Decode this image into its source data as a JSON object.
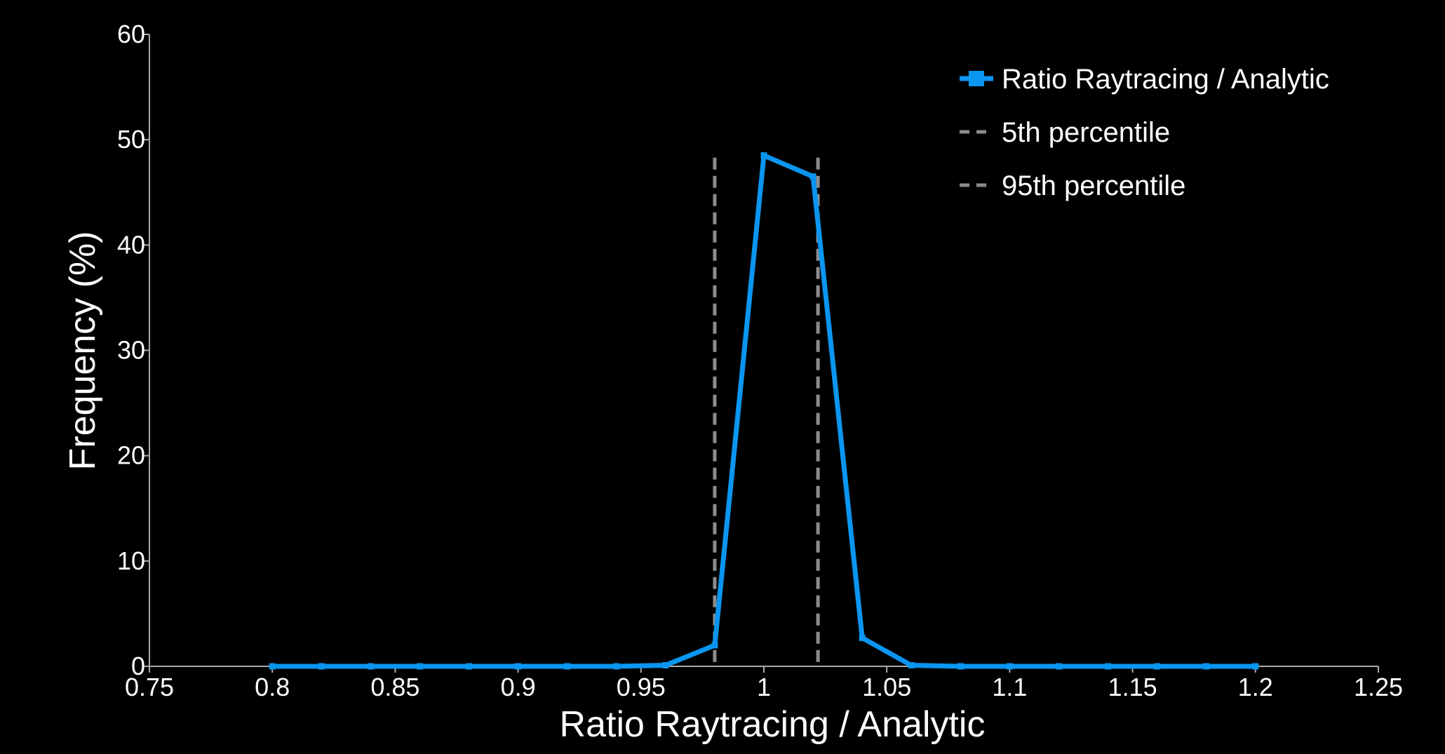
{
  "chart_data": {
    "type": "line",
    "title": "",
    "xlabel": "Ratio Raytracing / Analytic",
    "ylabel": "Frequency  (%)",
    "xlim": [
      0.75,
      1.25
    ],
    "ylim": [
      0,
      60
    ],
    "x_ticks": [
      0.75,
      0.8,
      0.85,
      0.9,
      0.95,
      1,
      1.05,
      1.1,
      1.15,
      1.2,
      1.25
    ],
    "x_tick_labels": [
      "0.75",
      "0.8",
      "0.85",
      "0.9",
      "0.95",
      "1",
      "1.05",
      "1.1",
      "1.15",
      "1.2",
      "1.25"
    ],
    "y_ticks": [
      0,
      10,
      20,
      30,
      40,
      50,
      60
    ],
    "y_tick_labels": [
      "0",
      "10",
      "20",
      "30",
      "40",
      "50",
      "60"
    ],
    "grid": false,
    "legend_position": "top-right",
    "series": [
      {
        "name": "Ratio Raytracing / Analytic",
        "color": "#0a96f0",
        "style": "solid",
        "marker": "square",
        "x": [
          0.8,
          0.82,
          0.84,
          0.86,
          0.88,
          0.9,
          0.92,
          0.94,
          0.96,
          0.98,
          1.0,
          1.02,
          1.04,
          1.06,
          1.08,
          1.1,
          1.12,
          1.14,
          1.16,
          1.18,
          1.2
        ],
        "y": [
          0,
          0,
          0,
          0,
          0,
          0,
          0,
          0,
          0.1,
          2.0,
          48.5,
          46.5,
          2.7,
          0.1,
          0,
          0,
          0,
          0,
          0,
          0,
          0
        ]
      }
    ],
    "reference_lines": [
      {
        "name": "5th percentile",
        "color": "#8c8c8c",
        "style": "dashed",
        "x": 0.98,
        "y_range": [
          0,
          48.3
        ]
      },
      {
        "name": "95th percentile",
        "color": "#8c8c8c",
        "style": "dashed",
        "x": 1.022,
        "y_range": [
          0,
          48.3
        ]
      }
    ],
    "axis_color": "#aaaaaa"
  }
}
